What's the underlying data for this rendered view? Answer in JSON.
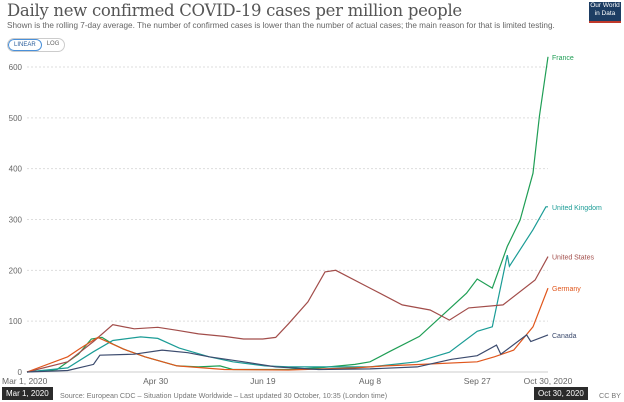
{
  "header": {
    "title": "Daily new confirmed COVID-19 cases per million people",
    "subtitle": "Shown is the rolling 7-day average. The number of confirmed cases is lower than the number of actual cases; the main reason for that is limited testing.",
    "logo_text": "Our World in Data",
    "scale_options": [
      "LINEAR",
      "LOG"
    ],
    "scale_selected": "LINEAR"
  },
  "footer": {
    "source": "Source: European CDC – Situation Update Worldwide – Last updated 30 October, 10:35 (London time)",
    "license": "CC BY",
    "tooltip_start": "Mar 1, 2020",
    "tooltip_end": "Oct 30, 2020"
  },
  "chart_data": {
    "type": "line",
    "title": "Daily new confirmed COVID-19 cases per million people",
    "xlim": [
      "2020-03-01",
      "2020-10-30"
    ],
    "ylim": [
      0,
      620
    ],
    "x_ticks": [
      "Mar 1, 2020",
      "Apr 30",
      "Jun 19",
      "Aug 8",
      "Sep 27",
      "Oct 30, 2020"
    ],
    "x_tick_dates": [
      "2020-03-01",
      "2020-04-30",
      "2020-06-19",
      "2020-08-08",
      "2020-09-27",
      "2020-10-30"
    ],
    "y_ticks": [
      0,
      100,
      200,
      300,
      400,
      500,
      600
    ],
    "grid": "horizontal dashed",
    "legend": "inline labels at line ends",
    "series": [
      {
        "name": "France",
        "color": "#1f9e55",
        "points": [
          [
            "2020-03-01",
            0
          ],
          [
            "2020-03-15",
            5
          ],
          [
            "2020-03-25",
            35
          ],
          [
            "2020-03-31",
            65
          ],
          [
            "2020-04-05",
            68
          ],
          [
            "2020-04-10",
            55
          ],
          [
            "2020-04-15",
            45
          ],
          [
            "2020-04-25",
            30
          ],
          [
            "2020-05-10",
            12
          ],
          [
            "2020-05-20",
            10
          ],
          [
            "2020-05-30",
            12
          ],
          [
            "2020-06-05",
            5
          ],
          [
            "2020-07-01",
            5
          ],
          [
            "2020-07-15",
            8
          ],
          [
            "2020-08-01",
            15
          ],
          [
            "2020-08-08",
            20
          ],
          [
            "2020-08-17",
            40
          ],
          [
            "2020-08-31",
            70
          ],
          [
            "2020-09-22",
            155
          ],
          [
            "2020-09-27",
            183
          ],
          [
            "2020-10-04",
            165
          ],
          [
            "2020-10-11",
            247
          ],
          [
            "2020-10-17",
            299
          ],
          [
            "2020-10-23",
            391
          ],
          [
            "2020-10-26",
            503
          ],
          [
            "2020-10-30",
            620
          ]
        ]
      },
      {
        "name": "United Kingdom",
        "color": "#1b9c96",
        "points": [
          [
            "2020-03-01",
            0
          ],
          [
            "2020-03-20",
            8
          ],
          [
            "2020-04-01",
            40
          ],
          [
            "2020-04-10",
            62
          ],
          [
            "2020-04-23",
            69
          ],
          [
            "2020-05-01",
            66
          ],
          [
            "2020-05-11",
            47
          ],
          [
            "2020-05-25",
            30
          ],
          [
            "2020-06-05",
            20
          ],
          [
            "2020-06-20",
            12
          ],
          [
            "2020-07-01",
            10
          ],
          [
            "2020-08-08",
            10
          ],
          [
            "2020-08-30",
            20
          ],
          [
            "2020-09-14",
            39
          ],
          [
            "2020-09-27",
            80
          ],
          [
            "2020-10-04",
            89
          ],
          [
            "2020-10-11",
            230
          ],
          [
            "2020-10-12",
            208
          ],
          [
            "2020-10-23",
            280
          ],
          [
            "2020-10-29",
            325
          ],
          [
            "2020-10-30",
            325
          ]
        ]
      },
      {
        "name": "United States",
        "color": "#a24d4a",
        "points": [
          [
            "2020-03-01",
            0
          ],
          [
            "2020-03-20",
            20
          ],
          [
            "2020-04-01",
            60
          ],
          [
            "2020-04-10",
            93
          ],
          [
            "2020-04-20",
            85
          ],
          [
            "2020-05-01",
            88
          ],
          [
            "2020-05-10",
            82
          ],
          [
            "2020-05-20",
            75
          ],
          [
            "2020-06-01",
            70
          ],
          [
            "2020-06-10",
            65
          ],
          [
            "2020-06-19",
            65
          ],
          [
            "2020-06-25",
            68
          ],
          [
            "2020-07-01",
            95
          ],
          [
            "2020-07-10",
            138
          ],
          [
            "2020-07-18",
            197
          ],
          [
            "2020-07-23",
            200
          ],
          [
            "2020-08-08",
            165
          ],
          [
            "2020-08-23",
            132
          ],
          [
            "2020-09-05",
            122
          ],
          [
            "2020-09-14",
            102
          ],
          [
            "2020-09-23",
            126
          ],
          [
            "2020-10-09",
            132
          ],
          [
            "2020-10-24",
            181
          ],
          [
            "2020-10-30",
            227
          ]
        ]
      },
      {
        "name": "Germany",
        "color": "#e0561c",
        "points": [
          [
            "2020-03-01",
            0
          ],
          [
            "2020-03-20",
            30
          ],
          [
            "2020-03-26",
            47
          ],
          [
            "2020-04-03",
            68
          ],
          [
            "2020-04-15",
            45
          ],
          [
            "2020-04-25",
            30
          ],
          [
            "2020-05-10",
            12
          ],
          [
            "2020-06-01",
            5
          ],
          [
            "2020-07-01",
            4
          ],
          [
            "2020-08-01",
            8
          ],
          [
            "2020-08-15",
            12
          ],
          [
            "2020-09-01",
            15
          ],
          [
            "2020-09-27",
            20
          ],
          [
            "2020-10-05",
            30
          ],
          [
            "2020-10-14",
            43
          ],
          [
            "2020-10-23",
            89
          ],
          [
            "2020-10-30",
            165
          ]
        ]
      },
      {
        "name": "Canada",
        "color": "#3c4b6e",
        "points": [
          [
            "2020-03-01",
            0
          ],
          [
            "2020-03-20",
            3
          ],
          [
            "2020-04-01",
            15
          ],
          [
            "2020-04-04",
            33
          ],
          [
            "2020-04-20",
            35
          ],
          [
            "2020-05-03",
            43
          ],
          [
            "2020-05-15",
            38
          ],
          [
            "2020-05-25",
            30
          ],
          [
            "2020-06-10",
            20
          ],
          [
            "2020-06-25",
            10
          ],
          [
            "2020-07-15",
            5
          ],
          [
            "2020-08-08",
            6
          ],
          [
            "2020-08-30",
            10
          ],
          [
            "2020-09-15",
            25
          ],
          [
            "2020-09-27",
            32
          ],
          [
            "2020-10-06",
            53
          ],
          [
            "2020-10-08",
            35
          ],
          [
            "2020-10-20",
            73
          ],
          [
            "2020-10-22",
            60
          ],
          [
            "2020-10-30",
            73
          ]
        ]
      }
    ]
  }
}
